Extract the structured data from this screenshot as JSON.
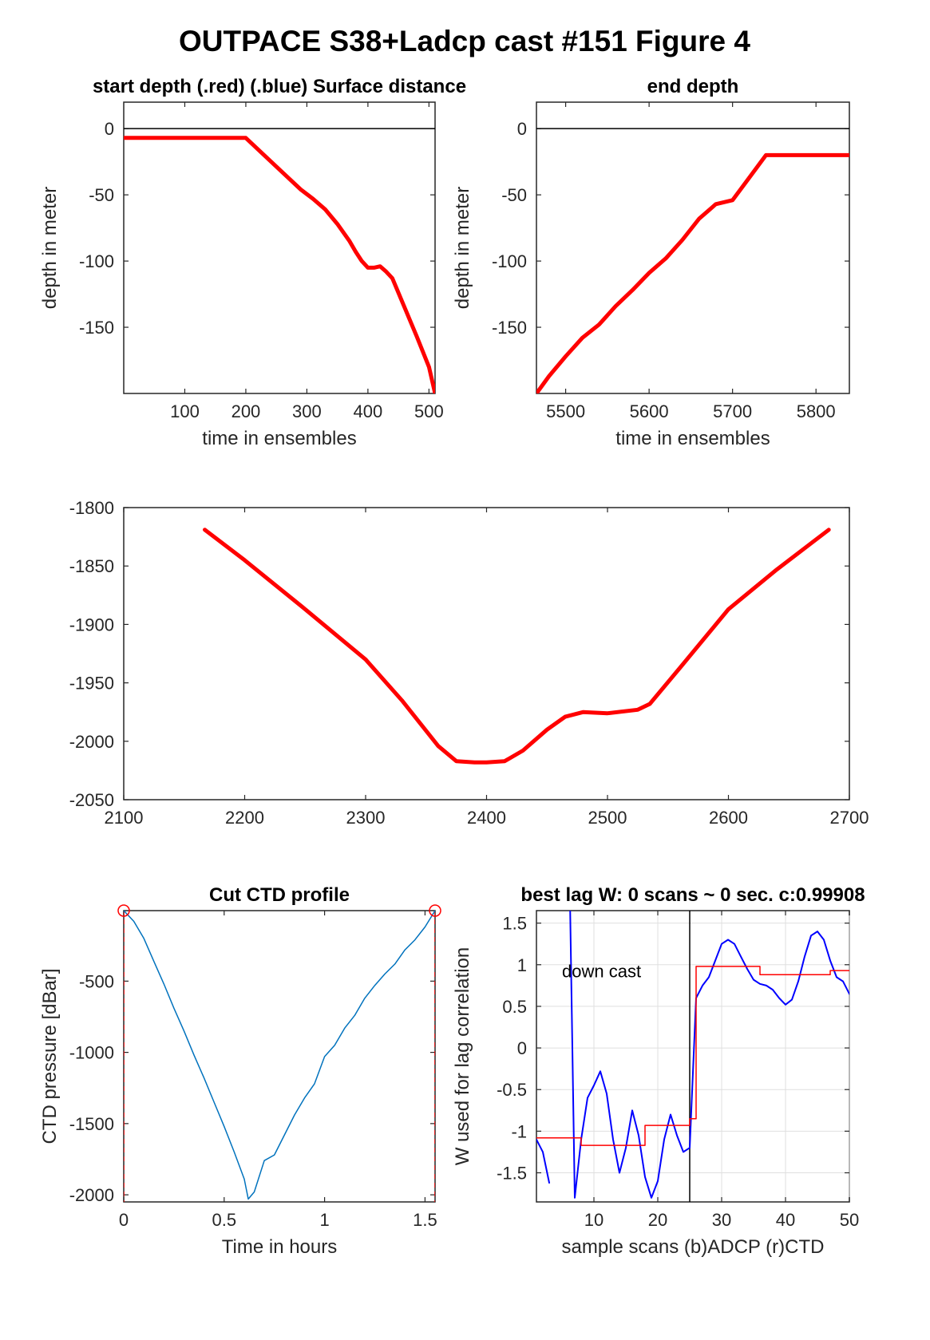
{
  "figure": {
    "title": "OUTPACE S38+Ladcp cast #151    Figure 4"
  },
  "colors": {
    "red": "#ff0000",
    "blue": "#0000ff",
    "ctd": "#0072bd",
    "axis": "#262626",
    "grid": "#dfdfdf",
    "black": "#000000"
  },
  "chart_data": [
    {
      "id": "start",
      "type": "line",
      "title": "start depth (.red) (.blue) Surface distance",
      "xlabel": "time in ensembles",
      "ylabel": "depth in meter",
      "xlim": [
        0,
        510
      ],
      "ylim": [
        -200,
        20
      ],
      "xticks": [
        100,
        200,
        300,
        400,
        500
      ],
      "yticks": [
        0,
        -50,
        -100,
        -150
      ],
      "reference_line": 0,
      "series": [
        {
          "color": "#ff0000",
          "width": 5,
          "x": [
            0,
            50,
            100,
            150,
            200,
            230,
            260,
            290,
            310,
            330,
            350,
            370,
            380,
            390,
            400,
            410,
            420,
            430,
            440,
            460,
            480,
            500,
            510
          ],
          "y": [
            -7,
            -7,
            -7,
            -7,
            -7,
            -20,
            -33,
            -46,
            -53,
            -61,
            -72,
            -85,
            -93,
            -100,
            -105,
            -105,
            -104,
            -108,
            -113,
            -135,
            -157,
            -180,
            -200
          ]
        }
      ]
    },
    {
      "id": "end",
      "type": "line",
      "title": "end depth",
      "xlabel": "time in ensembles",
      "ylabel": "depth in meter",
      "xlim": [
        5465,
        5840
      ],
      "ylim": [
        -200,
        20
      ],
      "xticks": [
        5500,
        5600,
        5700,
        5800
      ],
      "yticks": [
        0,
        -50,
        -100,
        -150
      ],
      "reference_line": 0,
      "series": [
        {
          "color": "#ff0000",
          "width": 5,
          "x": [
            5465,
            5480,
            5500,
            5520,
            5540,
            5560,
            5580,
            5600,
            5620,
            5640,
            5660,
            5680,
            5700,
            5720,
            5740,
            5760,
            5800,
            5840
          ],
          "y": [
            -200,
            -187,
            -172,
            -158,
            -148,
            -134,
            -122,
            -109,
            -98,
            -84,
            -68,
            -57,
            -54,
            -37,
            -20,
            -20,
            -20,
            -20
          ]
        }
      ]
    },
    {
      "id": "middle",
      "type": "line",
      "title": "",
      "xlabel": "",
      "ylabel": "",
      "xlim": [
        2100,
        2700
      ],
      "ylim": [
        -2050,
        -1800
      ],
      "xticks": [
        2100,
        2200,
        2300,
        2400,
        2500,
        2600,
        2700
      ],
      "yticks": [
        -1800,
        -1850,
        -1900,
        -1950,
        -2000,
        -2050
      ],
      "series": [
        {
          "color": "#ff0000",
          "width": 5,
          "x": [
            2167,
            2200,
            2250,
            2300,
            2330,
            2360,
            2375,
            2390,
            2400,
            2415,
            2430,
            2450,
            2465,
            2480,
            2500,
            2525,
            2535,
            2560,
            2600,
            2640,
            2683
          ],
          "y": [
            -1819,
            -1845,
            -1887,
            -1930,
            -1965,
            -2004,
            -2017,
            -2018,
            -2018,
            -2017,
            -2008,
            -1990,
            -1979,
            -1975,
            -1976,
            -1973,
            -1968,
            -1937,
            -1887,
            -1853,
            -1819
          ]
        }
      ]
    },
    {
      "id": "cut",
      "type": "line",
      "title": "Cut CTD profile",
      "xlabel": "Time in hours",
      "ylabel": "CTD pressure [dBar]",
      "xlim": [
        0,
        1.55
      ],
      "ylim": [
        -2050,
        -5
      ],
      "xticks": [
        0,
        0.5,
        1,
        1.5
      ],
      "yticks": [
        -500,
        -1000,
        -1500,
        -2000
      ],
      "vlines": [
        0,
        1.55
      ],
      "markers": [
        [
          0,
          -5
        ],
        [
          1.55,
          -5
        ]
      ],
      "series": [
        {
          "color": "#0072bd",
          "width": 1.5,
          "x": [
            0,
            0.05,
            0.1,
            0.15,
            0.2,
            0.25,
            0.3,
            0.35,
            0.4,
            0.45,
            0.5,
            0.55,
            0.6,
            0.62,
            0.65,
            0.7,
            0.75,
            0.8,
            0.85,
            0.9,
            0.95,
            1.0,
            1.05,
            1.1,
            1.15,
            1.2,
            1.25,
            1.3,
            1.35,
            1.4,
            1.45,
            1.5,
            1.55
          ],
          "y": [
            -5,
            -80,
            -200,
            -360,
            -520,
            -690,
            -850,
            -1020,
            -1180,
            -1350,
            -1520,
            -1700,
            -1890,
            -2030,
            -1980,
            -1760,
            -1720,
            -1580,
            -1440,
            -1320,
            -1220,
            -1030,
            -950,
            -830,
            -740,
            -620,
            -530,
            -450,
            -380,
            -280,
            -210,
            -120,
            -5
          ]
        }
      ]
    },
    {
      "id": "lag",
      "type": "line",
      "title": "best lag W: 0 scans ~ 0 sec.  c:0.99908",
      "xlabel": "sample scans (b)ADCP (r)CTD",
      "ylabel": "W used for lag correlation",
      "annotation": "down cast",
      "xlim": [
        1,
        50
      ],
      "ylim": [
        -1.85,
        1.65
      ],
      "xticks": [
        10,
        20,
        30,
        40,
        50
      ],
      "yticks": [
        1.5,
        1,
        0.5,
        0,
        -0.5,
        -1,
        -1.5
      ],
      "grid": true,
      "vlines": [
        25
      ],
      "series": [
        {
          "name": "ADCP",
          "color": "#0000ff",
          "width": 2,
          "x": [
            1,
            2,
            3,
            4,
            5,
            6,
            7,
            8,
            9,
            10,
            11,
            12,
            13,
            14,
            15,
            16,
            17,
            18,
            19,
            20,
            21,
            22,
            23,
            24,
            25,
            26,
            27,
            28,
            29,
            30,
            31,
            32,
            33,
            34,
            35,
            36,
            37,
            38,
            39,
            40,
            41,
            42,
            43,
            44,
            45,
            46,
            47,
            48,
            49,
            50
          ],
          "y": [
            -1.1,
            -1.25,
            -1.62,
            null,
            null,
            3.0,
            -1.8,
            -1.1,
            -0.6,
            -0.45,
            -0.28,
            -0.55,
            -1.1,
            -1.5,
            -1.2,
            -0.75,
            -1.05,
            -1.55,
            -1.8,
            -1.6,
            -1.1,
            -0.8,
            -1.05,
            -1.25,
            -1.2,
            0.6,
            0.75,
            0.85,
            1.05,
            1.25,
            1.3,
            1.25,
            1.1,
            0.95,
            0.82,
            0.77,
            0.75,
            0.7,
            0.6,
            0.52,
            0.58,
            0.8,
            1.1,
            1.35,
            1.4,
            1.3,
            1.05,
            0.85,
            0.8,
            0.65
          ]
        },
        {
          "name": "CTD",
          "color": "#ff0000",
          "width": 1.5,
          "x": [
            1,
            8,
            8,
            18,
            18,
            25,
            25,
            26,
            26,
            36,
            36,
            43,
            43,
            47,
            47,
            50
          ],
          "y": [
            -1.08,
            -1.08,
            -1.17,
            -1.17,
            -0.93,
            -0.93,
            -0.85,
            -0.85,
            0.98,
            0.98,
            0.88,
            0.88,
            0.88,
            0.88,
            0.93,
            0.93
          ]
        }
      ]
    }
  ]
}
